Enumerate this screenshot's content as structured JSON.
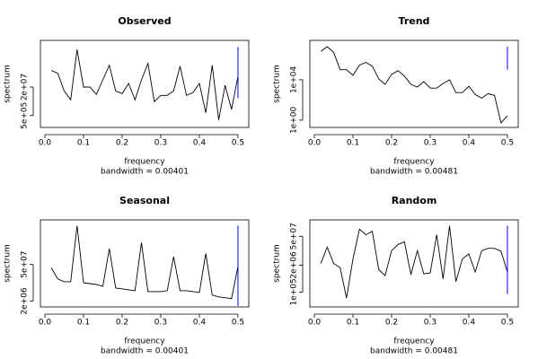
{
  "chart_data": [
    {
      "type": "line",
      "title": "Observed",
      "xlabel": "frequency",
      "ylabel": "spectrum",
      "subtitle": "bandwidth = 0.00401",
      "log_y": true,
      "color": "#000000",
      "ci_color": "#0000ff",
      "x": [
        0.0167,
        0.0333,
        0.05,
        0.0667,
        0.0833,
        0.1,
        0.1167,
        0.1333,
        0.15,
        0.1667,
        0.1833,
        0.2,
        0.2167,
        0.2333,
        0.25,
        0.2667,
        0.2833,
        0.3,
        0.3167,
        0.3333,
        0.35,
        0.3667,
        0.3833,
        0.4,
        0.4167,
        0.4333,
        0.45,
        0.4667,
        0.4833,
        0.5
      ],
      "values": [
        170000000,
        120000000,
        12000000,
        3800000,
        2600000000,
        20000000,
        20000000,
        7700000,
        51000000,
        340000000,
        12000000,
        8600000,
        32000000,
        3800000,
        51000000,
        430000000,
        3000000,
        6800000,
        6800000,
        12000000,
        300000000,
        6800000,
        9700000,
        32000000,
        710000,
        340000000,
        280000,
        25000000,
        1100000,
        83000000
      ],
      "ci": [
        4800000,
        3600000000
      ],
      "xlim": [
        -0.0116,
        0.528
      ],
      "xticks": [
        {
          "value": 0,
          "label": "0.0"
        },
        0.1,
        0.2,
        0.3,
        0.4,
        0.5
      ],
      "ylim": [
        107000,
        8500000000
      ],
      "yticks": [
        {
          "value": 500000,
          "label": "5e+05"
        },
        {
          "value": 20000000,
          "label": "2e+07"
        }
      ]
    },
    {
      "type": "line",
      "title": "Trend",
      "xlabel": "frequency",
      "ylabel": "spectrum",
      "subtitle": "bandwidth = 0.00481",
      "log_y": true,
      "color": "#000000",
      "ci_color": "#0000ff",
      "x": [
        0.0167,
        0.0333,
        0.05,
        0.0667,
        0.0833,
        0.1,
        0.1167,
        0.1333,
        0.15,
        0.1667,
        0.1833,
        0.2,
        0.2167,
        0.2333,
        0.25,
        0.2667,
        0.2833,
        0.3,
        0.3167,
        0.3333,
        0.35,
        0.3667,
        0.3833,
        0.4,
        0.4167,
        0.4333,
        0.45,
        0.4667,
        0.4833,
        0.5
      ],
      "values": [
        6600000,
        19000000,
        5300000,
        100000,
        100000,
        28000,
        280000,
        530000,
        230000,
        12000,
        3500,
        35000,
        81000,
        23000,
        3500,
        1900,
        6600,
        1500,
        1500,
        4300,
        10000,
        540,
        540,
        2300,
        350,
        150,
        430,
        280,
        0.54,
        2.8
      ],
      "ci": [
        100000,
        19000000
      ],
      "xlim": [
        -0.0116,
        0.528
      ],
      "xticks": [
        {
          "value": 0,
          "label": "0.0"
        },
        0.1,
        0.2,
        0.3,
        0.4,
        0.5
      ],
      "ylim": [
        0.19,
        80000000
      ],
      "yticks": [
        {
          "value": 1,
          "label": "1e+00"
        },
        {
          "value": 10000,
          "label": "1e+04"
        }
      ]
    },
    {
      "type": "line",
      "title": "Seasonal",
      "xlabel": "frequency",
      "ylabel": "spectrum",
      "subtitle": "bandwidth = 0.00401",
      "log_y": true,
      "color": "#000000",
      "ci_color": "#0000ff",
      "x": [
        0.0167,
        0.0333,
        0.05,
        0.0667,
        0.0833,
        0.1,
        0.1167,
        0.1333,
        0.15,
        0.1667,
        0.1833,
        0.2,
        0.2167,
        0.2333,
        0.25,
        0.2667,
        0.2833,
        0.3,
        0.3167,
        0.3333,
        0.35,
        0.3667,
        0.3833,
        0.4,
        0.4167,
        0.4333,
        0.45,
        0.4667,
        0.4833,
        0.5
      ],
      "values": [
        37000000,
        14000000,
        11000000,
        11000000,
        1500000000,
        10000000,
        9300000,
        8600000,
        7400000,
        200000000,
        6300000,
        5900000,
        5400000,
        5000000,
        340000000,
        4600000,
        4600000,
        4600000,
        5000000,
        100000000,
        5000000,
        5000000,
        4600000,
        4300000,
        130000000,
        3400000,
        2900000,
        2700000,
        2500000,
        43000000
      ],
      "ci": [
        1300000,
        1500000000
      ],
      "xlim": [
        -0.0116,
        0.528
      ],
      "xticks": [
        {
          "value": 0,
          "label": "0.0"
        },
        0.1,
        0.2,
        0.3,
        0.4,
        0.5
      ],
      "ylim": [
        1200000,
        2500000000
      ],
      "yticks": [
        {
          "value": 2000000,
          "label": "2e+06"
        },
        {
          "value": 50000000,
          "label": "5e+07"
        }
      ]
    },
    {
      "type": "line",
      "title": "Random",
      "xlabel": "frequency",
      "ylabel": "spectrum",
      "subtitle": "bandwidth = 0.00481",
      "log_y": true,
      "color": "#000000",
      "ci_color": "#0000ff",
      "x": [
        0.0167,
        0.0333,
        0.05,
        0.0667,
        0.0833,
        0.1,
        0.1167,
        0.1333,
        0.15,
        0.1667,
        0.1833,
        0.2,
        0.2167,
        0.2333,
        0.25,
        0.2667,
        0.2833,
        0.3,
        0.3167,
        0.3333,
        0.35,
        0.3667,
        0.3833,
        0.4,
        0.4167,
        0.4333,
        0.45,
        0.4667,
        0.4833,
        0.5
      ],
      "values": [
        2400000,
        15000000,
        2400000,
        1500000,
        51000,
        4000000,
        110000000,
        59000000,
        87000000,
        1200000,
        630000,
        10000000,
        20000000,
        27000000,
        690000,
        10000000,
        760000,
        840000,
        59000000,
        430000,
        160000000,
        320000,
        4000000,
        7000000,
        930000,
        10000000,
        13000000,
        13000000,
        9400000,
        930000
      ],
      "ci": [
        80000,
        160000000
      ],
      "xlim": [
        -0.0116,
        0.528
      ],
      "xticks": [
        {
          "value": 0,
          "label": "0.0"
        },
        0.1,
        0.2,
        0.3,
        0.4,
        0.5
      ],
      "ylim": [
        19000,
        310000000
      ],
      "yticks": [
        {
          "value": 100000,
          "label": "1e+05"
        },
        {
          "value": 2000000,
          "label": "2e+06"
        },
        {
          "value": 50000000,
          "label": "5e+07"
        }
      ]
    }
  ]
}
